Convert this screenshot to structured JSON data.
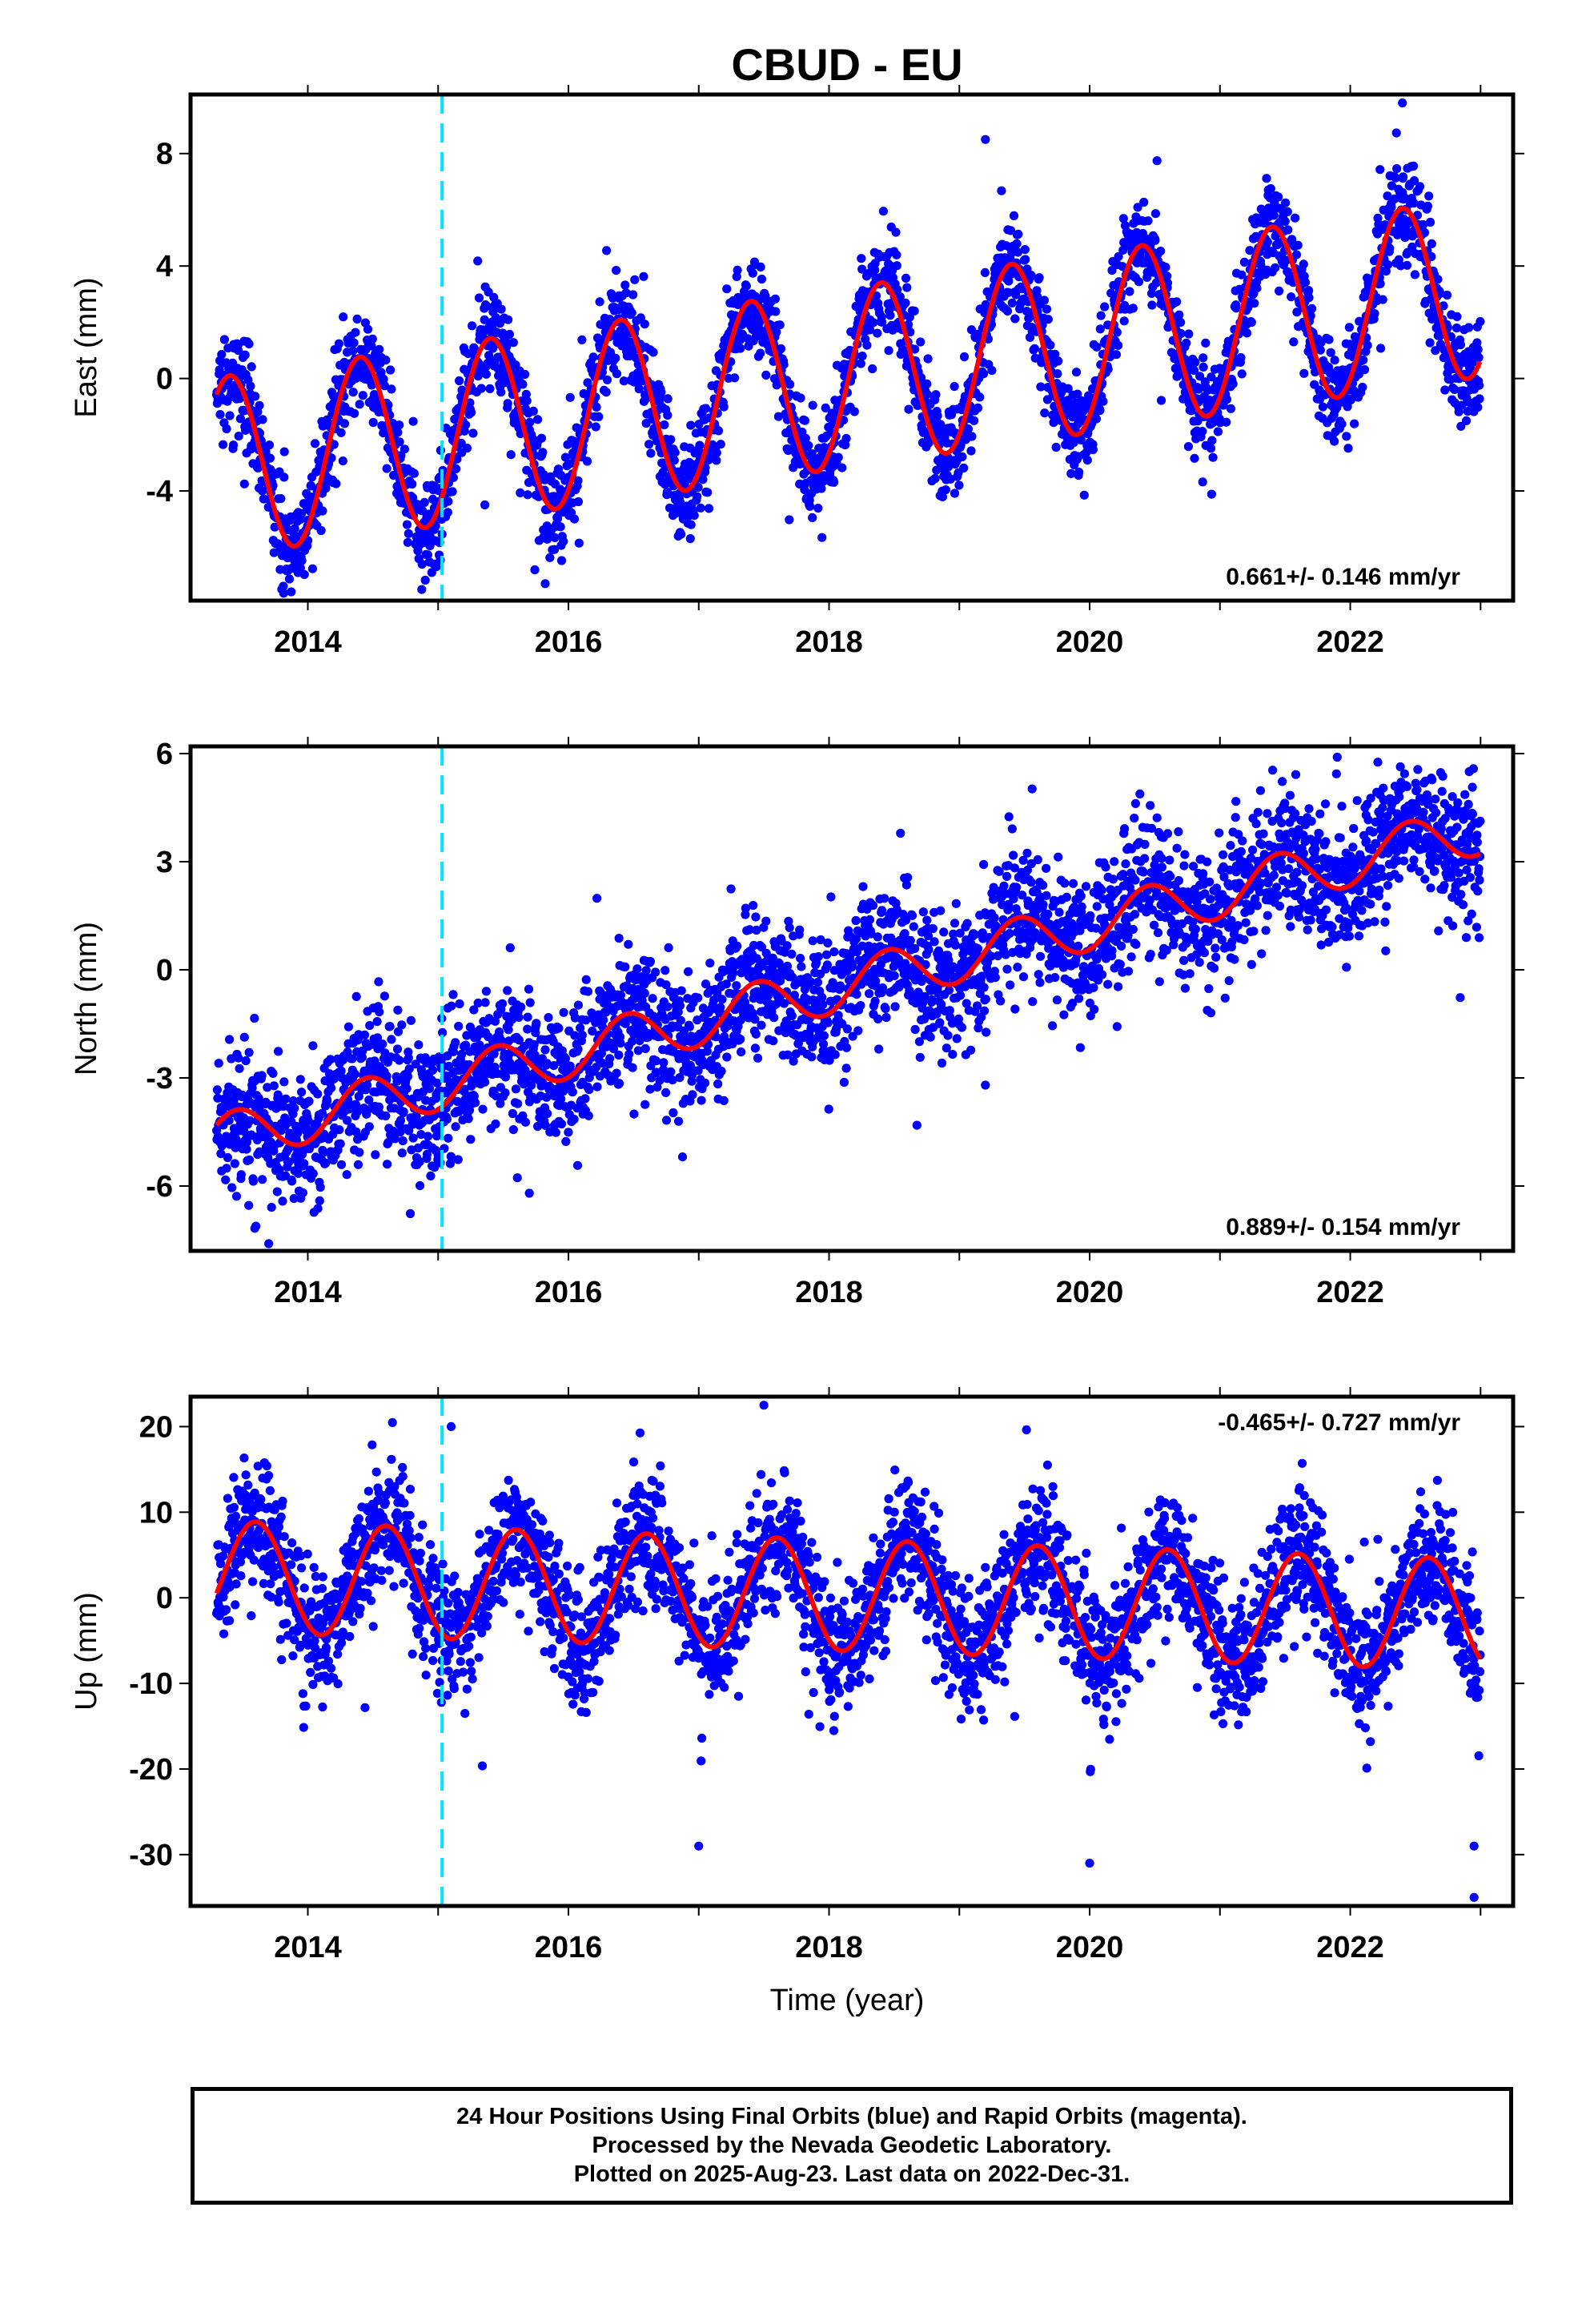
{
  "title": "CBUD - EU",
  "xlabel": "Time (year)",
  "footer_lines": [
    "24 Hour Positions Using Final Orbits (blue) and Rapid Orbits (magenta).",
    "Processed by the Nevada Geodetic Laboratory.",
    "Plotted on 2025-Aug-23. Last data on 2022-Dec-31."
  ],
  "colors": {
    "points": "#0000ff",
    "model": "#ff0000",
    "break_line": "#00e5ff"
  },
  "chart_data": [
    {
      "type": "scatter",
      "title": "CBUD - EU",
      "xlabel": "",
      "ylabel": "East (mm)",
      "xlim": [
        2013.1,
        2023.25
      ],
      "ylim": [
        -7.9,
        10.1
      ],
      "xticks": [
        2014,
        2016,
        2018,
        2020,
        2022
      ],
      "yticks": [
        -4,
        0,
        4,
        8
      ],
      "break_epoch": 2015.03,
      "rate_label": "0.661+/- 0.146 mm/yr",
      "rate_position": "bottom-right",
      "series": [
        {
          "kind": "points",
          "x_range": [
            2013.3,
            2023.0
          ],
          "trend": [
            -2.7,
            0.661
          ],
          "seasonal": {
            "amplitude": 3.2,
            "peak_phase": 0.4
          },
          "noise": 0.9,
          "outliers": [
            [
              2022.4,
              9.8
            ],
            [
              2019.2,
              8.5
            ],
            [
              2013.8,
              -7.5
            ]
          ]
        },
        {
          "kind": "model",
          "x_range": [
            2013.3,
            2023.0
          ],
          "trend": [
            -2.7,
            0.661
          ],
          "seasonal": {
            "amplitude": 3.2,
            "peak_phase": 0.4
          }
        }
      ]
    },
    {
      "type": "scatter",
      "title": "",
      "xlabel": "",
      "ylabel": "North (mm)",
      "xlim": [
        2013.1,
        2023.25
      ],
      "ylim": [
        -7.8,
        6.2
      ],
      "xticks": [
        2014,
        2016,
        2018,
        2020,
        2022
      ],
      "yticks": [
        -6,
        -3,
        0,
        3,
        6
      ],
      "break_epoch": 2015.03,
      "rate_label": "0.889+/- 0.154 mm/yr",
      "rate_position": "bottom-right",
      "series": [
        {
          "kind": "points",
          "x_range": [
            2013.3,
            2023.0
          ],
          "trend": [
            -4.1,
            0.889
          ],
          "seasonal": {
            "amplitude": 0.7,
            "peak_phase": 0.45
          },
          "noise": 0.95,
          "outliers": [
            [
              2013.7,
              -7.6
            ],
            [
              2021.9,
              5.9
            ],
            [
              2019.2,
              -3.2
            ],
            [
              2015.7,
              -6.2
            ]
          ]
        },
        {
          "kind": "model",
          "x_range": [
            2013.3,
            2023.0
          ],
          "trend": [
            -4.1,
            0.889
          ],
          "seasonal": {
            "amplitude": 0.7,
            "peak_phase": 0.45
          }
        }
      ]
    },
    {
      "type": "scatter",
      "title": "",
      "xlabel": "Time (year)",
      "ylabel": "Up (mm)",
      "xlim": [
        2013.1,
        2023.25
      ],
      "ylim": [
        -36,
        23.5
      ],
      "xticks": [
        2014,
        2016,
        2018,
        2020,
        2022
      ],
      "yticks": [
        -30,
        -20,
        -10,
        0,
        10,
        20
      ],
      "break_epoch": 2015.03,
      "rate_label": "-0.465+/- 0.727 mm/yr",
      "rate_position": "top-right",
      "series": [
        {
          "kind": "points",
          "x_range": [
            2013.3,
            2023.0
          ],
          "trend": [
            2.2,
            -0.465
          ],
          "seasonal": {
            "amplitude": 6.5,
            "peak_phase": 0.6
          },
          "noise": 3.8,
          "outliers": [
            [
              2017.5,
              22.5
            ],
            [
              2022.95,
              -35
            ],
            [
              2020.0,
              -31
            ],
            [
              2017.0,
              -29
            ],
            [
              2022.95,
              -29
            ],
            [
              2015.1,
              20
            ]
          ]
        },
        {
          "kind": "model",
          "x_range": [
            2013.3,
            2023.0
          ],
          "trend": [
            2.2,
            -0.465
          ],
          "seasonal": {
            "amplitude": 6.5,
            "peak_phase": 0.6
          }
        }
      ]
    }
  ]
}
